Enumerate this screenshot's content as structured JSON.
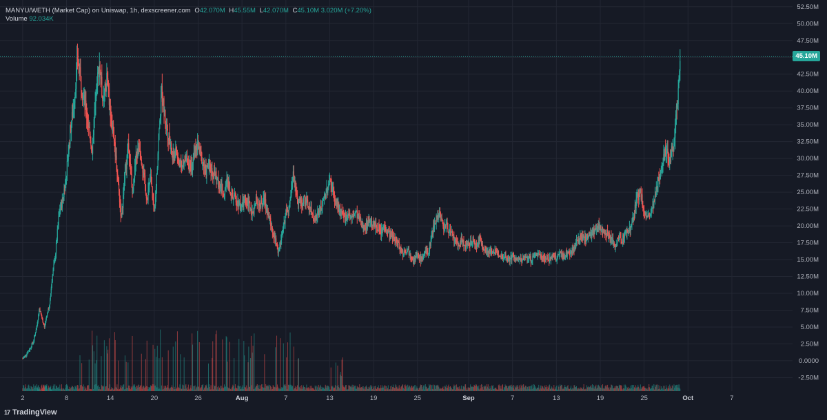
{
  "header": {
    "symbol": "MANYU/WETH (Market Cap) on Uniswap, 1h, dexscreener.com",
    "o_label": "O",
    "o_value": "42.070M",
    "h_label": "H",
    "h_value": "45.55M",
    "l_label": "L",
    "l_value": "42.070M",
    "c_label": "C",
    "c_value": "45.10M",
    "change": "3.020M (+7.20%)",
    "volume_label": "Volume",
    "volume_value": "92.034K"
  },
  "last_price_tag": "45.10M",
  "footer": {
    "logo_mark": "17",
    "brand": "TradingView"
  },
  "colors": {
    "background": "#161a25",
    "grid": "#232733",
    "up": "#26a69a",
    "down": "#ef5350",
    "text": "#b2b5be"
  },
  "chart_data": {
    "type": "line",
    "title": "MANYU/WETH (Market Cap) on Uniswap, 1h, dexscreener.com",
    "ylim": [
      -4.5,
      53.5
    ],
    "y_unit": "M",
    "y_ticks": [
      "52.50M",
      "50.00M",
      "47.50M",
      "45.00M",
      "42.50M",
      "40.00M",
      "37.50M",
      "35.00M",
      "32.50M",
      "30.00M",
      "27.50M",
      "25.00M",
      "22.50M",
      "20.00M",
      "17.50M",
      "15.00M",
      "12.50M",
      "10.00M",
      "7.50M",
      "5.00M",
      "2.50M",
      "0.0000",
      "-2.50M"
    ],
    "y_tick_values": [
      52.5,
      50,
      47.5,
      45,
      42.5,
      40,
      37.5,
      35,
      32.5,
      30,
      27.5,
      25,
      22.5,
      20,
      17.5,
      15,
      12.5,
      10,
      7.5,
      5,
      2.5,
      0,
      -2.5
    ],
    "x_ticks": [
      {
        "label": "2",
        "day": 2,
        "bold": false
      },
      {
        "label": "8",
        "day": 8,
        "bold": false
      },
      {
        "label": "14",
        "day": 14,
        "bold": false
      },
      {
        "label": "20",
        "day": 20,
        "bold": false
      },
      {
        "label": "26",
        "day": 26,
        "bold": false
      },
      {
        "label": "Aug",
        "day": 32,
        "bold": true
      },
      {
        "label": "7",
        "day": 38,
        "bold": false
      },
      {
        "label": "13",
        "day": 44,
        "bold": false
      },
      {
        "label": "19",
        "day": 50,
        "bold": false
      },
      {
        "label": "25",
        "day": 56,
        "bold": false
      },
      {
        "label": "Sep",
        "day": 63,
        "bold": true
      },
      {
        "label": "7",
        "day": 69,
        "bold": false
      },
      {
        "label": "13",
        "day": 75,
        "bold": false
      },
      {
        "label": "19",
        "day": 81,
        "bold": false
      },
      {
        "label": "25",
        "day": 87,
        "bold": false
      },
      {
        "label": "Oct",
        "day": 93,
        "bold": true
      },
      {
        "label": "7",
        "day": 99,
        "bold": false
      }
    ],
    "xlim_days": [
      -1.1,
      107.3
    ],
    "series": [
      {
        "name": "MANYU/WETH (Market Cap)",
        "points": [
          [
            2,
            0.3
          ],
          [
            2.5,
            1.0
          ],
          [
            3,
            1.8
          ],
          [
            3.5,
            3.0
          ],
          [
            4,
            5.5
          ],
          [
            4.3,
            7.8
          ],
          [
            4.7,
            6.0
          ],
          [
            5,
            5.0
          ],
          [
            5.3,
            6.8
          ],
          [
            5.7,
            8.2
          ],
          [
            6,
            12
          ],
          [
            6.5,
            16
          ],
          [
            7,
            22
          ],
          [
            7.5,
            24
          ],
          [
            8,
            28
          ],
          [
            8.5,
            34
          ],
          [
            9,
            38
          ],
          [
            9.5,
            45
          ],
          [
            10,
            41
          ],
          [
            10.5,
            38
          ],
          [
            11,
            35
          ],
          [
            11.5,
            31
          ],
          [
            12,
            40
          ],
          [
            12.5,
            44
          ],
          [
            13,
            38
          ],
          [
            13.5,
            42
          ],
          [
            14,
            37
          ],
          [
            14.5,
            33
          ],
          [
            15,
            27
          ],
          [
            15.5,
            21
          ],
          [
            16,
            28
          ],
          [
            16.5,
            32
          ],
          [
            17,
            25
          ],
          [
            17.5,
            30
          ],
          [
            18,
            32
          ],
          [
            18.5,
            28
          ],
          [
            19,
            24
          ],
          [
            19.5,
            27
          ],
          [
            20,
            22
          ],
          [
            20.5,
            31
          ],
          [
            21,
            40
          ],
          [
            21.5,
            36
          ],
          [
            22,
            33
          ],
          [
            22.5,
            30
          ],
          [
            23,
            31
          ],
          [
            23.5,
            29
          ],
          [
            24,
            29
          ],
          [
            24.5,
            30
          ],
          [
            25,
            28
          ],
          [
            25.5,
            31
          ],
          [
            26,
            32
          ],
          [
            26.5,
            30
          ],
          [
            27,
            28
          ],
          [
            27.5,
            29
          ],
          [
            28,
            28
          ],
          [
            28.5,
            27
          ],
          [
            29,
            26
          ],
          [
            29.5,
            25
          ],
          [
            30,
            27
          ],
          [
            30.5,
            25
          ],
          [
            31,
            24
          ],
          [
            31.5,
            23.5
          ],
          [
            32,
            23
          ],
          [
            32.5,
            24
          ],
          [
            33,
            23
          ],
          [
            33.5,
            22
          ],
          [
            34,
            24
          ],
          [
            34.5,
            23
          ],
          [
            35,
            24
          ],
          [
            35.5,
            22
          ],
          [
            36,
            20
          ],
          [
            36.5,
            18
          ],
          [
            37,
            16
          ],
          [
            37.5,
            19
          ],
          [
            38,
            22
          ],
          [
            38.5,
            23
          ],
          [
            39,
            28
          ],
          [
            39.5,
            24
          ],
          [
            40,
            23
          ],
          [
            40.5,
            24
          ],
          [
            41,
            23
          ],
          [
            41.5,
            22
          ],
          [
            42,
            21
          ],
          [
            42.5,
            22
          ],
          [
            43,
            23
          ],
          [
            43.5,
            25
          ],
          [
            44,
            27
          ],
          [
            44.5,
            25
          ],
          [
            45,
            23
          ],
          [
            45.5,
            22
          ],
          [
            46,
            21
          ],
          [
            46.5,
            22
          ],
          [
            47,
            21
          ],
          [
            47.5,
            22
          ],
          [
            48,
            21
          ],
          [
            48.5,
            20
          ],
          [
            49,
            20
          ],
          [
            49.5,
            21
          ],
          [
            50,
            20
          ],
          [
            50.5,
            20
          ],
          [
            51,
            19
          ],
          [
            51.5,
            20
          ],
          [
            52,
            19
          ],
          [
            52.5,
            18.5
          ],
          [
            53,
            18
          ],
          [
            53.5,
            17
          ],
          [
            54,
            16
          ],
          [
            54.5,
            16.5
          ],
          [
            55,
            16
          ],
          [
            55.5,
            15
          ],
          [
            56,
            15.5
          ],
          [
            56.5,
            15
          ],
          [
            57,
            16
          ],
          [
            57.5,
            16
          ],
          [
            58,
            19
          ],
          [
            58.5,
            21
          ],
          [
            59,
            22
          ],
          [
            59.5,
            20
          ],
          [
            60,
            20
          ],
          [
            60.5,
            19
          ],
          [
            61,
            18
          ],
          [
            61.5,
            17
          ],
          [
            62,
            18
          ],
          [
            62.5,
            17
          ],
          [
            63,
            17
          ],
          [
            63.5,
            18
          ],
          [
            64,
            17
          ],
          [
            64.5,
            18
          ],
          [
            65,
            17
          ],
          [
            65.5,
            16
          ],
          [
            66,
            16.5
          ],
          [
            66.5,
            16
          ],
          [
            67,
            16
          ],
          [
            67.5,
            15.5
          ],
          [
            68,
            15.5
          ],
          [
            68.5,
            15
          ],
          [
            69,
            15.5
          ],
          [
            69.5,
            15
          ],
          [
            70,
            15
          ],
          [
            70.5,
            15
          ],
          [
            71,
            15.5
          ],
          [
            71.5,
            15
          ],
          [
            72,
            15.5
          ],
          [
            72.5,
            16
          ],
          [
            73,
            15.5
          ],
          [
            73.5,
            15.3
          ],
          [
            74,
            15
          ],
          [
            74.5,
            15.5
          ],
          [
            75,
            15
          ],
          [
            75.5,
            16
          ],
          [
            76,
            15.5
          ],
          [
            76.5,
            16
          ],
          [
            77,
            16
          ],
          [
            77.5,
            17
          ],
          [
            78,
            18
          ],
          [
            78.5,
            18.5
          ],
          [
            79,
            18
          ],
          [
            79.5,
            19
          ],
          [
            80,
            19
          ],
          [
            80.5,
            19.5
          ],
          [
            81,
            20
          ],
          [
            81.5,
            19
          ],
          [
            82,
            19
          ],
          [
            82.5,
            18
          ],
          [
            83,
            17
          ],
          [
            83.5,
            18
          ],
          [
            84,
            18
          ],
          [
            84.5,
            19
          ],
          [
            85,
            19.5
          ],
          [
            85.5,
            21
          ],
          [
            86,
            24
          ],
          [
            86.5,
            25
          ],
          [
            87,
            22
          ],
          [
            87.5,
            21
          ],
          [
            88,
            22
          ],
          [
            88.5,
            24
          ],
          [
            89,
            27
          ],
          [
            89.5,
            30
          ],
          [
            90,
            31
          ],
          [
            90.5,
            30
          ],
          [
            91,
            32
          ],
          [
            91.5,
            38
          ],
          [
            92,
            45.1
          ]
        ]
      }
    ],
    "last_value": 45.1,
    "volume": {
      "label": "Volume",
      "value": "92.034K"
    },
    "grid": true
  }
}
